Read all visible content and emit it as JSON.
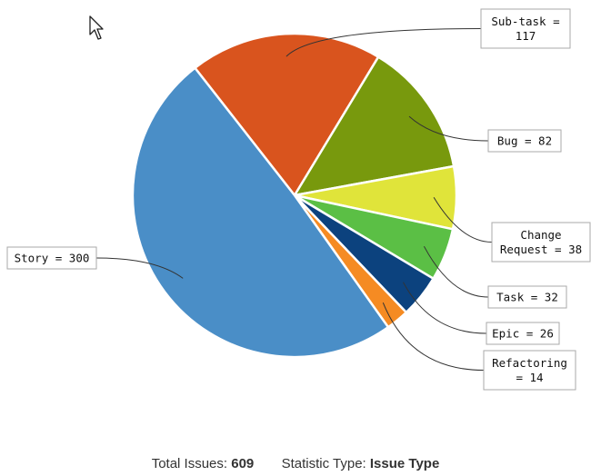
{
  "chart_data": {
    "type": "pie",
    "slices": [
      {
        "name": "Sub-task",
        "value": 117,
        "color": "#d9541e",
        "label_lines": [
          "Sub-task =",
          "117"
        ]
      },
      {
        "name": "Bug",
        "value": 82,
        "color": "#78990d",
        "label_lines": [
          "Bug = 82"
        ]
      },
      {
        "name": "Change Request",
        "value": 38,
        "color": "#e0e43a",
        "label_lines": [
          "Change",
          "Request = 38"
        ]
      },
      {
        "name": "Task",
        "value": 32,
        "color": "#5bbf45",
        "label_lines": [
          "Task = 32"
        ]
      },
      {
        "name": "Epic",
        "value": 26,
        "color": "#0c427e",
        "label_lines": [
          "Epic = 26"
        ]
      },
      {
        "name": "Refactoring",
        "value": 14,
        "color": "#f58b23",
        "label_lines": [
          "Refactoring",
          "= 14"
        ]
      },
      {
        "name": "Story",
        "value": 300,
        "color": "#4a8ec7",
        "label_lines": [
          "Story = 300"
        ]
      }
    ]
  },
  "footer": {
    "total_label": "Total Issues:",
    "total_value": "609",
    "stat_label": "Statistic Type:",
    "stat_value": "Issue Type"
  },
  "cursor": {
    "icon": "mouse-pointer-icon"
  }
}
